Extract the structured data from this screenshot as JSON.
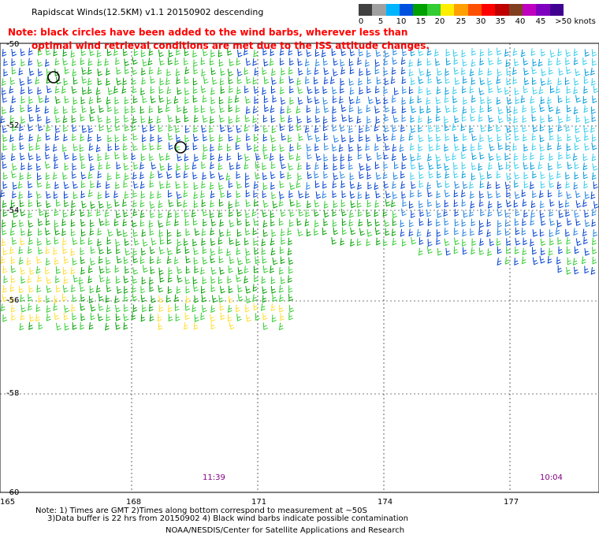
{
  "title": "Rapidscat Winds(12.5KM) v1.1 20150902 descending",
  "note": {
    "line1": "Note: black circles have been added to the wind barbs, wherever less than",
    "line2": "optimal wind retrieval conditions are met due to the ISS attitude changes."
  },
  "legend": {
    "labels": [
      "0",
      "5",
      "10",
      "15",
      "20",
      "25",
      "30",
      "35",
      "40",
      "45",
      ">50 knots"
    ],
    "colors": [
      "#404040",
      "#a0a0a0",
      "#00b4ff",
      "#0050e0",
      "#00a000",
      "#33cc33",
      "#ffee00",
      "#ffa000",
      "#ff5000",
      "#ff0000",
      "#c00000",
      "#804020",
      "#c000c0",
      "#8000c0",
      "#400090"
    ]
  },
  "axes": {
    "lat_labels": [
      "-50",
      "-52",
      "-54",
      "-56",
      "-58",
      "-60"
    ],
    "lon_labels": [
      "165",
      "168",
      "171",
      "174",
      "177"
    ]
  },
  "times": [
    "11:39",
    "10:04"
  ],
  "footer": {
    "line1": "Note: 1) Times are GMT 2)Times along bottom correspond to measurement at ~50S",
    "line2": "3)Data buffer is 22 hrs from 20150902 4) Black wind barbs indicate possible contamination",
    "credit": "NOAA/NESDIS/Center for Satellite Applications and Research"
  }
}
